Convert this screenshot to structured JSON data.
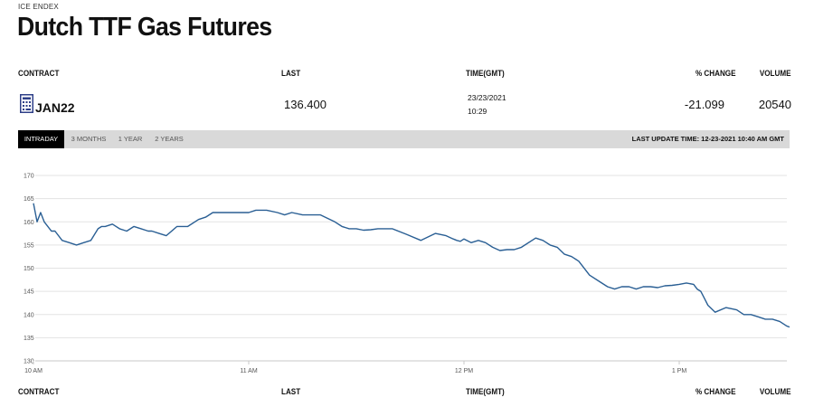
{
  "page": {
    "kicker": "ICE ENDEX",
    "title": "Dutch TTF Gas Futures"
  },
  "table": {
    "headers": {
      "contract": "CONTRACT",
      "last": "LAST",
      "time": "TIME(GMT)",
      "change": "% CHANGE",
      "volume": "VOLUME"
    },
    "row": {
      "contract_icon": "contract-document-icon",
      "contract": "JAN22",
      "last": "136.400",
      "time_date": "23/23/2021",
      "time_clock": "10:29",
      "change": "-21.099",
      "volume": "20540"
    }
  },
  "tabs": [
    {
      "label": "INTRADAY",
      "active": true
    },
    {
      "label": "3 MONTHS",
      "active": false
    },
    {
      "label": "1 YEAR",
      "active": false
    },
    {
      "label": "2 YEARS",
      "active": false
    }
  ],
  "last_update": "LAST UPDATE TIME: 12-23-2021 10:40 AM GMT",
  "colors": {
    "line": "#2a5f94",
    "grid": "#e3e3e3",
    "tab_active_bg": "#000000",
    "tab_bar_bg": "#d9d9d9"
  },
  "chart_data": {
    "type": "line",
    "title": "",
    "xlabel": "",
    "ylabel": "",
    "grid": "horizontal",
    "x_ticks": [
      "10 AM",
      "11 AM",
      "12 PM",
      "1 PM"
    ],
    "y_ticks": [
      130,
      135,
      140,
      145,
      150,
      155,
      160,
      165,
      170
    ],
    "xlim_minutes_after_10am": [
      0,
      228
    ],
    "ylim": [
      130,
      170
    ],
    "series": [
      {
        "x": [
          0,
          1,
          2,
          3,
          4,
          5,
          6,
          8,
          10,
          12,
          14,
          16,
          18,
          19,
          20,
          22,
          24,
          26,
          28,
          30,
          32,
          33,
          35,
          37,
          40,
          43,
          46,
          48,
          50,
          52,
          54,
          56,
          60,
          62,
          65,
          68,
          70,
          72,
          75,
          80,
          84,
          86,
          88,
          90,
          92,
          94,
          96,
          98,
          100,
          104,
          108,
          112,
          115,
          117,
          118,
          119,
          120,
          122,
          124,
          126,
          128,
          130,
          132,
          134,
          136,
          140,
          142,
          144,
          146,
          148,
          150,
          152,
          155,
          158,
          160,
          162,
          164,
          166,
          168,
          170,
          172,
          174,
          176,
          178,
          180,
          182,
          184,
          185,
          186,
          187,
          188,
          190,
          193,
          196,
          198,
          200,
          202,
          204,
          206,
          208,
          210,
          212,
          214,
          216,
          218,
          220,
          222,
          224,
          226
        ],
        "y": [
          164,
          160,
          162,
          160,
          159,
          158,
          158,
          156,
          155.5,
          155,
          155.5,
          156,
          158.5,
          159,
          159,
          159.5,
          158.5,
          158,
          159,
          158.5,
          158,
          158,
          157.5,
          157,
          159,
          159,
          160.5,
          161,
          162,
          162,
          162,
          162,
          162,
          162.5,
          162.5,
          162,
          161.5,
          162,
          161.5,
          161.5,
          160,
          159,
          158.5,
          158.5,
          158.2,
          158.3,
          158.5,
          158.5,
          158.5,
          157.3,
          156,
          157.5,
          157,
          156.3,
          156,
          155.8,
          156.3,
          155.5,
          156,
          155.5,
          154.5,
          153.8,
          154,
          154,
          154.5,
          156.5,
          156,
          155,
          154.5,
          153,
          152.5,
          151.5,
          148.5,
          147,
          146,
          145.5,
          146,
          146,
          145.5,
          146,
          146,
          145.8,
          146.2,
          146.3,
          146.5,
          146.8,
          146.5,
          145.5,
          145,
          143.5,
          142,
          140.5,
          141.5,
          141,
          140,
          140,
          139.5,
          139,
          139,
          138.5,
          137.5,
          137,
          136.8,
          137,
          137.2,
          136.5,
          136.3,
          136.5,
          136.4
        ]
      }
    ]
  }
}
